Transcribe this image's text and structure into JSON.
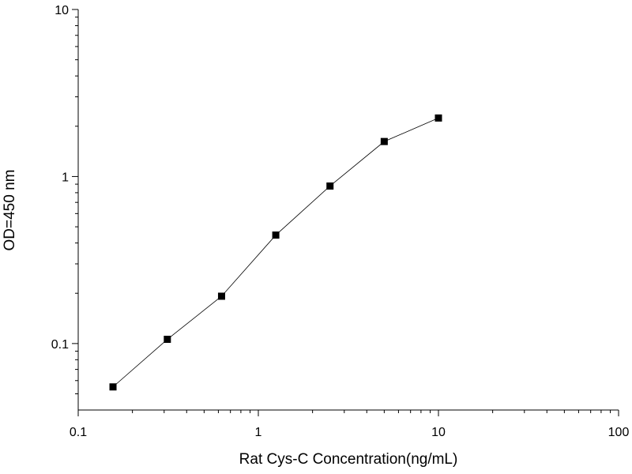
{
  "chart_data": {
    "type": "line",
    "xlabel": "Rat Cys-C  Concentration(ng/mL)",
    "ylabel": "OD=450 nm",
    "x": [
      0.156,
      0.3125,
      0.625,
      1.25,
      2.5,
      5,
      10
    ],
    "series": [
      {
        "color": "#000000",
        "values": [
          0.055,
          0.106,
          0.192,
          0.446,
          0.877,
          1.62,
          2.24
        ]
      }
    ],
    "xlim": [
      0.1,
      100
    ],
    "ylim": [
      0.04,
      10
    ],
    "xticks": [
      0.1,
      1,
      10,
      100
    ],
    "yticks": [
      0.1,
      1,
      10
    ],
    "xscale": "log",
    "yscale": "log",
    "marker": "square"
  }
}
